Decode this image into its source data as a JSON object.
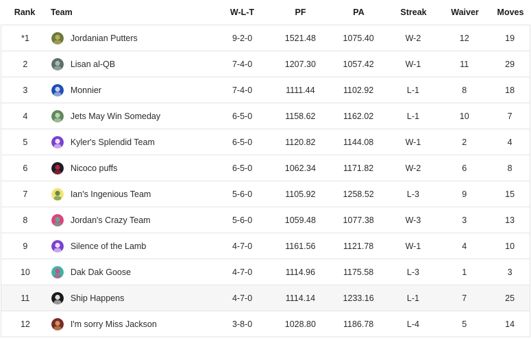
{
  "headers": {
    "rank": "Rank",
    "team": "Team",
    "wlt": "W-L-T",
    "pf": "PF",
    "pa": "PA",
    "streak": "Streak",
    "waiver": "Waiver",
    "moves": "Moves"
  },
  "rows": [
    {
      "rank": "*1",
      "team": "Jordanian Putters",
      "wlt": "9-2-0",
      "pf": "1521.48",
      "pa": "1075.40",
      "streak": "W-2",
      "waiver": "12",
      "moves": "19",
      "logo_icon": "putter-avatar-icon",
      "logo_color": "#6b7b3a",
      "logo_accent": "#c9b56a"
    },
    {
      "rank": "2",
      "team": "Lisan al-QB",
      "wlt": "7-4-0",
      "pf": "1207.30",
      "pa": "1057.42",
      "streak": "W-1",
      "waiver": "11",
      "moves": "29",
      "logo_icon": "face-avatar-icon",
      "logo_color": "#5d6f6a",
      "logo_accent": "#b8c4c0"
    },
    {
      "rank": "3",
      "team": "Monnier",
      "wlt": "7-4-0",
      "pf": "1111.44",
      "pa": "1102.92",
      "streak": "L-1",
      "waiver": "8",
      "moves": "18",
      "logo_icon": "helmet-avatar-icon",
      "logo_color": "#1e4fb8",
      "logo_accent": "#e8e8e8"
    },
    {
      "rank": "4",
      "team": "Jets May Win Someday",
      "wlt": "6-5-0",
      "pf": "1158.62",
      "pa": "1162.02",
      "streak": "L-1",
      "waiver": "10",
      "moves": "7",
      "logo_icon": "jet-avatar-icon",
      "logo_color": "#5f8a5a",
      "logo_accent": "#cfe0c8"
    },
    {
      "rank": "5",
      "team": "Kyler's Splendid Team",
      "wlt": "6-5-0",
      "pf": "1120.82",
      "pa": "1144.08",
      "streak": "W-1",
      "waiver": "2",
      "moves": "4",
      "logo_icon": "purple-face-icon",
      "logo_color": "#7b3fd1",
      "logo_accent": "#ffffff"
    },
    {
      "rank": "6",
      "team": "Nicoco puffs",
      "wlt": "6-5-0",
      "pf": "1062.34",
      "pa": "1171.82",
      "streak": "W-2",
      "waiver": "6",
      "moves": "8",
      "logo_icon": "red-black-avatar-icon",
      "logo_color": "#1a1a2a",
      "logo_accent": "#d0243a"
    },
    {
      "rank": "7",
      "team": "Ian's Ingenious Team",
      "wlt": "5-6-0",
      "pf": "1105.92",
      "pa": "1258.52",
      "streak": "L-3",
      "waiver": "9",
      "moves": "15",
      "logo_icon": "yellow-face-icon",
      "logo_color": "#f1e27a",
      "logo_accent": "#4a7a3a"
    },
    {
      "rank": "8",
      "team": "Jordan's Crazy Team",
      "wlt": "5-6-0",
      "pf": "1059.48",
      "pa": "1077.38",
      "streak": "W-3",
      "waiver": "3",
      "moves": "13",
      "logo_icon": "pink-face-icon",
      "logo_color": "#e0427a",
      "logo_accent": "#3fbf9f"
    },
    {
      "rank": "9",
      "team": "Silence of the Lamb",
      "wlt": "4-7-0",
      "pf": "1161.56",
      "pa": "1121.78",
      "streak": "W-1",
      "waiver": "4",
      "moves": "10",
      "logo_icon": "purple-face-icon",
      "logo_color": "#7b3fd1",
      "logo_accent": "#ffffff"
    },
    {
      "rank": "10",
      "team": "Dak Dak Goose",
      "wlt": "4-7-0",
      "pf": "1114.96",
      "pa": "1175.58",
      "streak": "L-3",
      "waiver": "1",
      "moves": "3",
      "logo_icon": "teal-face-icon",
      "logo_color": "#3fb3a6",
      "logo_accent": "#e0427a"
    },
    {
      "rank": "11",
      "team": "Ship Happens",
      "wlt": "4-7-0",
      "pf": "1114.14",
      "pa": "1233.16",
      "streak": "L-1",
      "waiver": "7",
      "moves": "25",
      "logo_icon": "ship-avatar-icon",
      "logo_color": "#1a1a1a",
      "logo_accent": "#ffffff"
    },
    {
      "rank": "12",
      "team": "I'm sorry Miss Jackson",
      "wlt": "3-8-0",
      "pf": "1028.80",
      "pa": "1186.78",
      "streak": "L-4",
      "waiver": "5",
      "moves": "14",
      "logo_icon": "photo-avatar-icon",
      "logo_color": "#7a2a2a",
      "logo_accent": "#d9a85a"
    }
  ]
}
